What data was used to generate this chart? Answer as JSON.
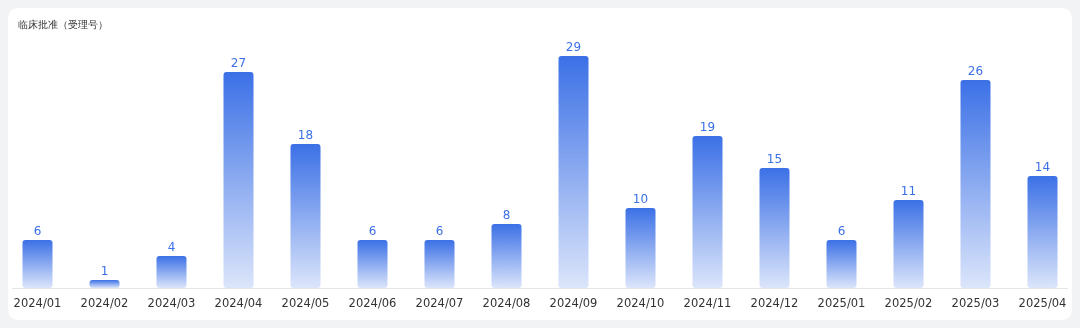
{
  "chart_data": {
    "type": "bar",
    "title": "临床批准（受理号）",
    "categories": [
      "2024/01",
      "2024/02",
      "2024/03",
      "2024/04",
      "2024/05",
      "2024/06",
      "2024/07",
      "2024/08",
      "2024/09",
      "2024/10",
      "2024/11",
      "2024/12",
      "2025/01",
      "2025/02",
      "2025/03",
      "2025/04"
    ],
    "values": [
      6,
      1,
      4,
      27,
      18,
      6,
      6,
      8,
      29,
      10,
      19,
      15,
      6,
      11,
      26,
      14
    ],
    "color": "#3b70e6",
    "data_labels": true
  }
}
